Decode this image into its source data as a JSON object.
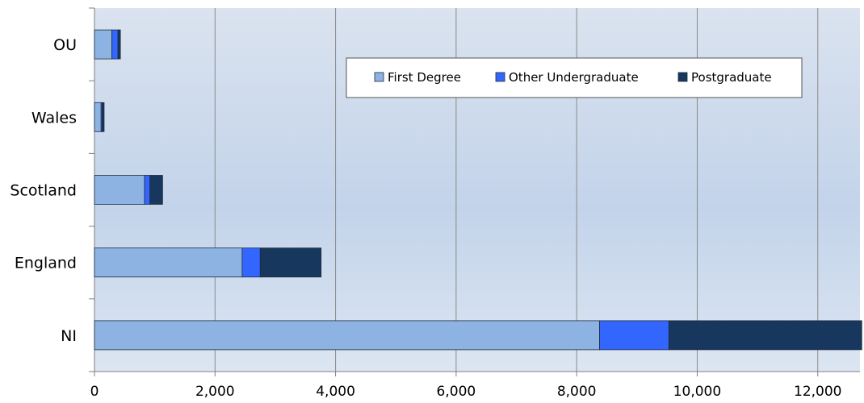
{
  "chart_data": {
    "type": "bar",
    "orientation": "horizontal",
    "stacked": true,
    "categories": [
      "OU",
      "Wales",
      "Scotland",
      "England",
      "NI"
    ],
    "series": [
      {
        "name": "First Degree",
        "color": "#8db3e2",
        "values": [
          290,
          110,
          830,
          2450,
          8380
        ]
      },
      {
        "name": "Other Undergraduate",
        "color": "#3366ff",
        "values": [
          100,
          20,
          90,
          300,
          1150
        ]
      },
      {
        "name": "Postgraduate",
        "color": "#17375e",
        "values": [
          40,
          30,
          210,
          1010,
          3200
        ]
      }
    ],
    "xlim": [
      0,
      12700
    ],
    "xticks": [
      0,
      2000,
      4000,
      6000,
      8000,
      10000,
      12000
    ],
    "xtick_labels": [
      "0",
      "2,000",
      "4,000",
      "6,000",
      "8,000",
      "10,000",
      "12,000"
    ],
    "grid": true,
    "legend_position": "top-center"
  }
}
